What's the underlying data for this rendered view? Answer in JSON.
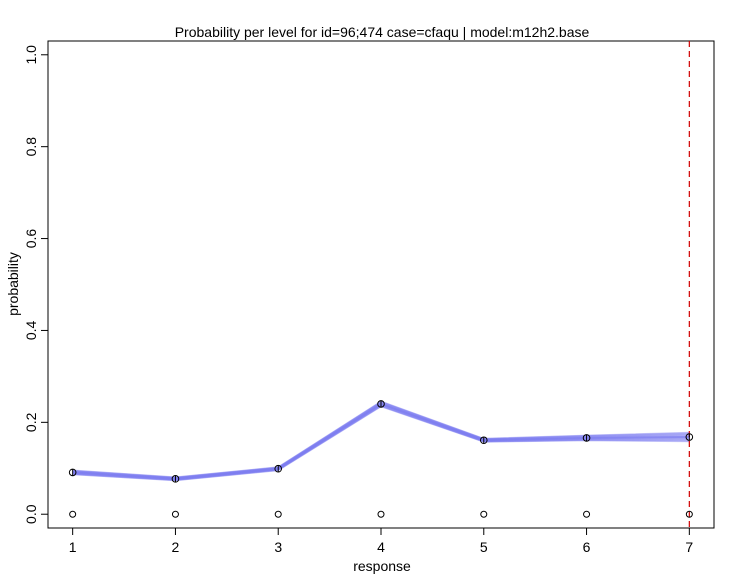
{
  "chart_data": {
    "type": "line",
    "title": "Probability per level for id=96;474 case=cfaqu | model:m12h2.base",
    "xlabel": "response",
    "ylabel": "probability",
    "x": [
      1,
      2,
      3,
      4,
      5,
      6,
      7
    ],
    "xlim": [
      0.76,
      7.24
    ],
    "ylim": [
      -0.03,
      1.03
    ],
    "xticks": [
      "1",
      "2",
      "3",
      "4",
      "5",
      "6",
      "7"
    ],
    "yticks": [
      "0.0",
      "0.2",
      "0.4",
      "0.6",
      "0.8",
      "1.0"
    ],
    "series": [
      {
        "kind": "predicted-band",
        "color": "#7b7bf0",
        "values": [
          0.091,
          0.077,
          0.099,
          0.24,
          0.161,
          0.166,
          0.168
        ],
        "spread": [
          0.005,
          0.004,
          0.004,
          0.006,
          0.004,
          0.006,
          0.01
        ]
      },
      {
        "kind": "observed-points",
        "color": "#000000",
        "values": [
          0.091,
          0.077,
          0.099,
          0.24,
          0.161,
          0.166,
          0.168
        ]
      },
      {
        "kind": "zero-points",
        "color": "#000000",
        "values": [
          0,
          0,
          0,
          0,
          0,
          0,
          0
        ]
      }
    ],
    "reference_line": {
      "x": 7,
      "color": "#d00000",
      "style": "dashed"
    },
    "grid": false,
    "legend": "none"
  }
}
